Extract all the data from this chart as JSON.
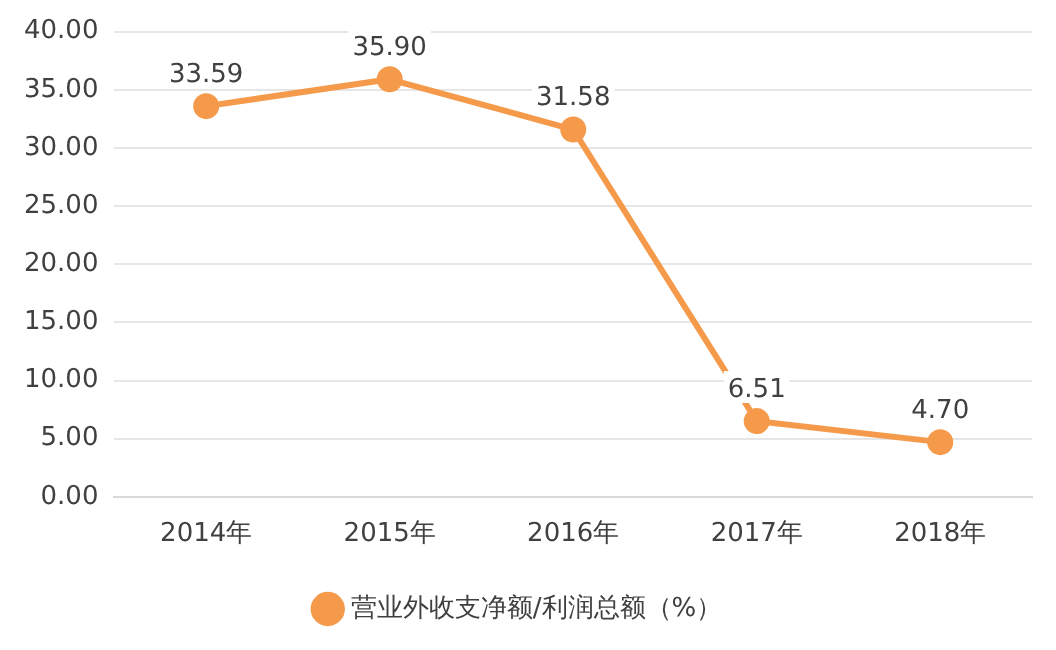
{
  "chart_data": {
    "type": "line",
    "categories": [
      "2014年",
      "2015年",
      "2016年",
      "2017年",
      "2018年"
    ],
    "series": [
      {
        "name": "营业外收支净额/利润总额（%）",
        "color": "#f59a4a",
        "values": [
          33.59,
          35.9,
          31.58,
          6.51,
          4.7
        ],
        "value_labels": [
          "33.59",
          "35.90",
          "31.58",
          "6.51",
          "4.70"
        ]
      }
    ],
    "ylim": [
      0,
      40
    ],
    "yticks": [
      {
        "value": 0,
        "label": "0.00"
      },
      {
        "value": 5,
        "label": "5.00"
      },
      {
        "value": 10,
        "label": "10.00"
      },
      {
        "value": 15,
        "label": "15.00"
      },
      {
        "value": 20,
        "label": "20.00"
      },
      {
        "value": 25,
        "label": "25.00"
      },
      {
        "value": 30,
        "label": "30.00"
      },
      {
        "value": 35,
        "label": "35.00"
      },
      {
        "value": 40,
        "label": "40.00"
      }
    ],
    "grid": "y",
    "legend": "bottom",
    "marker": "circle",
    "line_style": "solid"
  }
}
